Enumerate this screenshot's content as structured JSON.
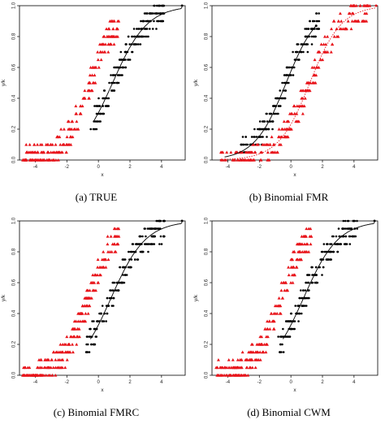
{
  "figure": {
    "captions": [
      "(a)  TRUE",
      "(b)  Binomial FMR",
      "(c)  Binomial FMRC",
      "(d)  Binomial CWM"
    ],
    "colors": {
      "series1": "#000000",
      "series2": "#e8141b",
      "fit1": "#000000",
      "fit2": "#e8141b"
    }
  },
  "chart_data": [
    {
      "type": "scatter",
      "title": "",
      "xlabel": "x",
      "ylabel": "y/k",
      "xticks": [
        -4,
        -2,
        0,
        2,
        4
      ],
      "yticks": [
        0.0,
        0.2,
        0.4,
        0.6,
        0.8,
        1.0
      ],
      "xlim": [
        -5,
        5.5
      ],
      "ylim": [
        0,
        1
      ],
      "grid": false,
      "series": [
        {
          "marker": "circle",
          "color": "#000000",
          "x_range": [
            -0.5,
            4.2
          ],
          "logistic_center": 0.9,
          "logistic_slope": 1.1
        },
        {
          "marker": "triangle",
          "color": "#e8141b",
          "x_range": [
            -4.8,
            1.3
          ],
          "logistic_center": -0.5,
          "logistic_slope": 0.85
        }
      ],
      "fit_lines": [
        {
          "color": "#000000",
          "style": "solid",
          "x_from": -0.3,
          "x_to": 5.3,
          "center": 0.9,
          "slope": 1.1,
          "end_value": 1.0
        }
      ]
    },
    {
      "type": "scatter",
      "title": "",
      "xlabel": "x",
      "ylabel": "y/k",
      "xticks": [
        -4,
        -2,
        0,
        2,
        4
      ],
      "yticks": [
        0.0,
        0.2,
        0.4,
        0.6,
        0.8,
        1.0
      ],
      "xlim": [
        -5,
        5.5
      ],
      "ylim": [
        0,
        1
      ],
      "grid": false,
      "series": [
        {
          "marker": "circle",
          "color": "#000000",
          "x_range": [
            -3.2,
            1.8
          ],
          "logistic_center": -0.3,
          "logistic_slope": 1.0
        },
        {
          "marker": "triangle",
          "color": "#e8141b",
          "x_range": [
            -4.5,
            5.0
          ],
          "logistic_center": 1.2,
          "logistic_slope": 1.0
        }
      ],
      "fit_lines": [
        {
          "color": "#000000",
          "style": "solid",
          "x_from": -4.2,
          "x_to": 1.6,
          "center": -0.3,
          "slope": 1.0,
          "end_value": 0.8
        },
        {
          "color": "#e8141b",
          "style": "dotted",
          "x_from": -4.5,
          "x_to": 5.4,
          "center": 1.2,
          "slope": 1.0,
          "end_value": 1.0
        }
      ]
    },
    {
      "type": "scatter",
      "title": "",
      "xlabel": "x",
      "ylabel": "y/k",
      "xticks": [
        -4,
        -2,
        0,
        2,
        4
      ],
      "yticks": [
        0.0,
        0.2,
        0.4,
        0.6,
        0.8,
        1.0
      ],
      "xlim": [
        -5,
        5.5
      ],
      "ylim": [
        0,
        1
      ],
      "grid": false,
      "series": [
        {
          "marker": "circle",
          "color": "#000000",
          "x_range": [
            -0.8,
            4.2
          ],
          "logistic_center": 0.8,
          "logistic_slope": 1.1
        },
        {
          "marker": "triangle",
          "color": "#e8141b",
          "x_range": [
            -4.8,
            1.3
          ],
          "logistic_center": -0.6,
          "logistic_slope": 0.85
        }
      ],
      "fit_lines": [
        {
          "color": "#000000",
          "style": "solid",
          "x_from": -0.5,
          "x_to": 5.3,
          "center": 0.8,
          "slope": 1.1,
          "end_value": 1.0
        }
      ]
    },
    {
      "type": "scatter",
      "title": "",
      "xlabel": "x",
      "ylabel": "y/k",
      "xticks": [
        -4,
        -2,
        0,
        2,
        4
      ],
      "yticks": [
        0.0,
        0.2,
        0.4,
        0.6,
        0.8,
        1.0
      ],
      "xlim": [
        -5,
        5.5
      ],
      "ylim": [
        0,
        1
      ],
      "grid": false,
      "series": [
        {
          "marker": "circle",
          "color": "#000000",
          "x_range": [
            -0.8,
            4.2
          ],
          "logistic_center": 0.8,
          "logistic_slope": 1.1
        },
        {
          "marker": "triangle",
          "color": "#e8141b",
          "x_range": [
            -4.8,
            1.3
          ],
          "logistic_center": -0.6,
          "logistic_slope": 0.85
        }
      ],
      "fit_lines": [
        {
          "color": "#000000",
          "style": "solid",
          "x_from": -0.5,
          "x_to": 5.3,
          "center": 0.8,
          "slope": 1.1,
          "end_value": 1.0
        }
      ]
    }
  ]
}
